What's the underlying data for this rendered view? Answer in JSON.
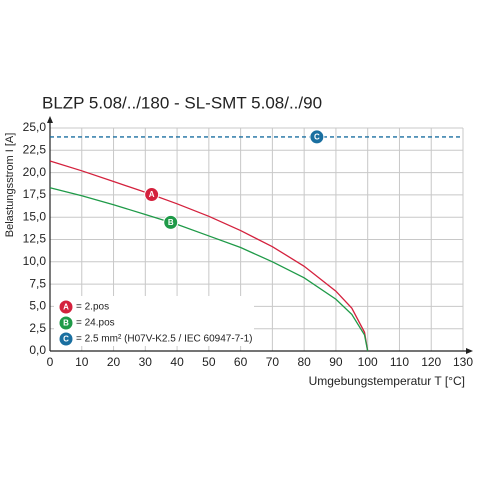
{
  "chart_data": {
    "type": "line",
    "title": "BLZP 5.08/../180 - SL-SMT 5.08/../90",
    "x_label": "Umgebungstemperatur T [°C]",
    "y_label": "Belastungsstrom I [A]",
    "xlim": [
      0,
      130
    ],
    "ylim": [
      0,
      25
    ],
    "xticks": [
      0,
      10,
      20,
      30,
      40,
      50,
      60,
      70,
      80,
      90,
      100,
      110,
      120,
      130
    ],
    "yticks": [
      {
        "value": 0,
        "label": "0,0"
      },
      {
        "value": 2.5,
        "label": "2,5"
      },
      {
        "value": 5,
        "label": "5,0"
      },
      {
        "value": 7.5,
        "label": "7,5"
      },
      {
        "value": 10,
        "label": "10,0"
      },
      {
        "value": 12.5,
        "label": "12,5"
      },
      {
        "value": 15,
        "label": "15,0"
      },
      {
        "value": 17.5,
        "label": "17,5"
      },
      {
        "value": 20,
        "label": "20,0"
      },
      {
        "value": 22.5,
        "label": "22,5"
      },
      {
        "value": 25,
        "label": "25,0"
      }
    ],
    "grid": true,
    "series": [
      {
        "name": "= 2.pos",
        "marker": "A",
        "color": "#d4213d",
        "x": [
          0,
          10,
          20,
          30,
          40,
          50,
          60,
          70,
          80,
          90,
          95,
          99,
          100
        ],
        "values": [
          21.3,
          20.2,
          19.0,
          17.8,
          16.5,
          15.1,
          13.5,
          11.7,
          9.5,
          6.7,
          4.8,
          2.1,
          0
        ]
      },
      {
        "name": "= 24.pos",
        "marker": "B",
        "color": "#1f9a48",
        "x": [
          0,
          10,
          20,
          30,
          40,
          50,
          60,
          70,
          80,
          90,
          95,
          99,
          100
        ],
        "values": [
          18.3,
          17.4,
          16.4,
          15.3,
          14.2,
          12.9,
          11.6,
          10.0,
          8.2,
          5.8,
          4.1,
          1.8,
          0
        ]
      },
      {
        "name": "= 2.5 mm² (H07V-K2.5 / IEC 60947-7-1)",
        "marker": "C",
        "color": "#1a6fa0",
        "dashed": true,
        "x": [
          0,
          130
        ],
        "values": [
          24,
          24
        ]
      }
    ]
  }
}
